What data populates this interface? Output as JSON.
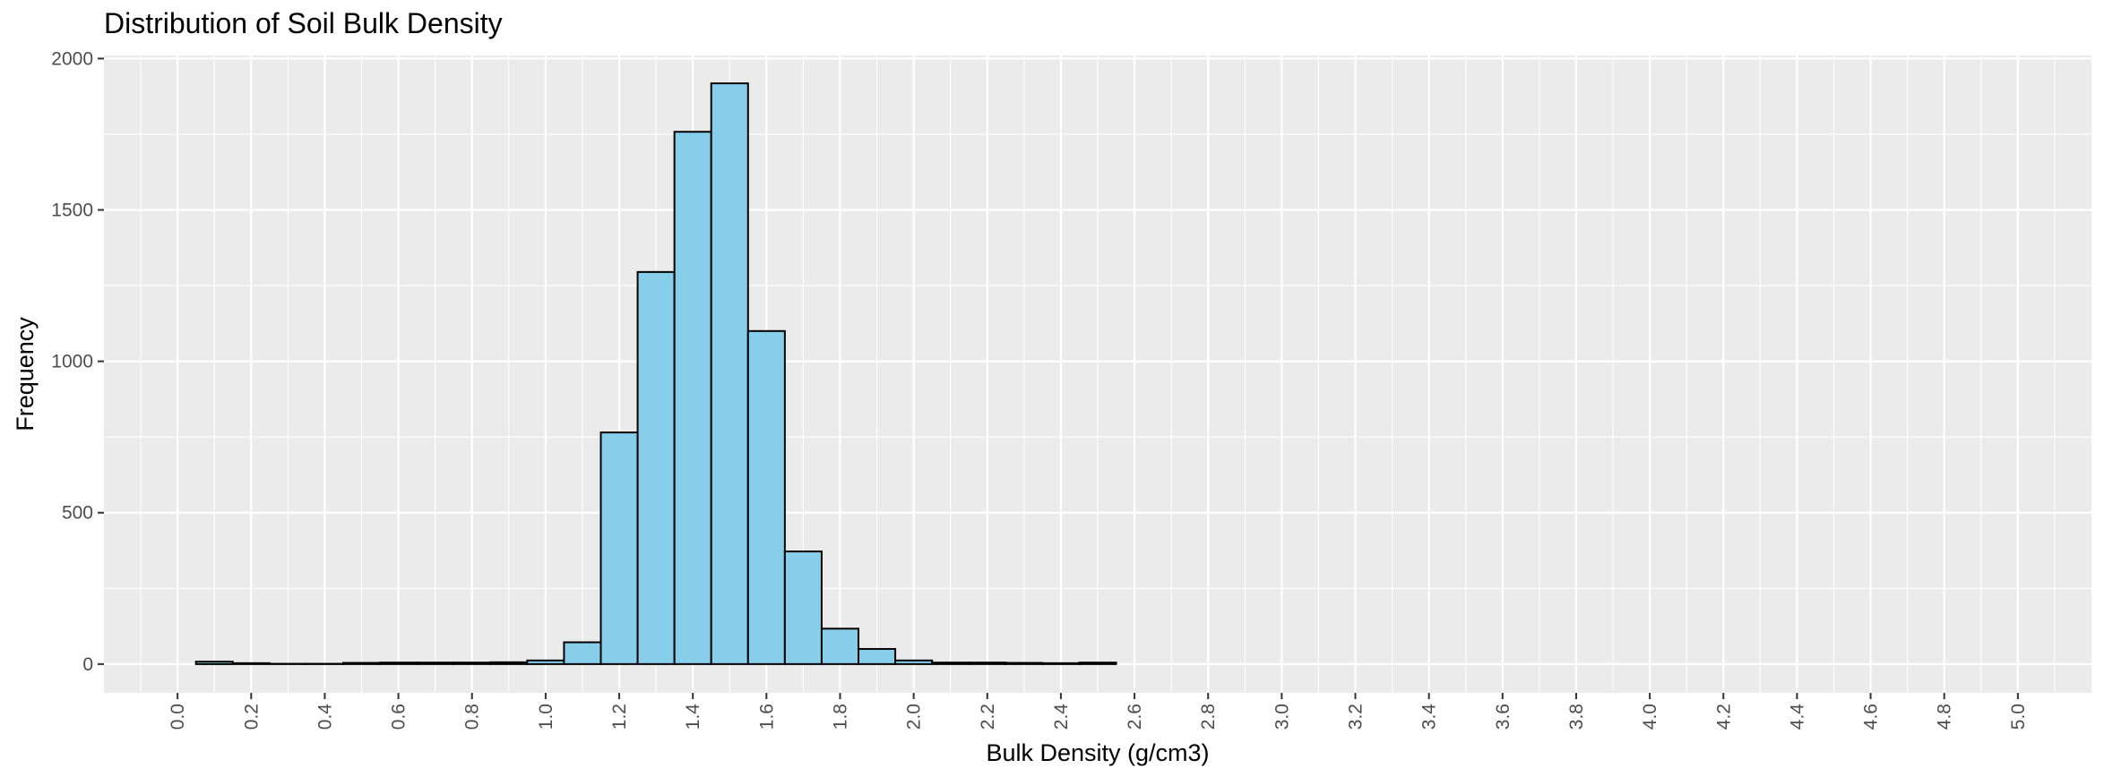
{
  "chart_data": {
    "type": "bar",
    "subtype": "histogram",
    "title": "Distribution of Soil Bulk Density",
    "xlabel": "Bulk Density (g/cm3)",
    "ylabel": "Frequency",
    "xlim": [
      -0.2,
      5.2
    ],
    "ylim": [
      -95,
      2010
    ],
    "bin_width": 0.1,
    "x_ticks": [
      "0.0",
      "0.2",
      "0.4",
      "0.6",
      "0.8",
      "1.0",
      "1.2",
      "1.4",
      "1.6",
      "1.8",
      "2.0",
      "2.2",
      "2.4",
      "2.6",
      "2.8",
      "3.0",
      "3.2",
      "3.4",
      "3.6",
      "3.8",
      "4.0",
      "4.2",
      "4.4",
      "4.6",
      "4.8",
      "5.0"
    ],
    "y_ticks": [
      0,
      500,
      1000,
      1500,
      2000
    ],
    "bins": [
      {
        "x0": 0.05,
        "x1": 0.15,
        "count": 8
      },
      {
        "x0": 0.15,
        "x1": 0.25,
        "count": 3
      },
      {
        "x0": 0.25,
        "x1": 0.35,
        "count": 1
      },
      {
        "x0": 0.35,
        "x1": 0.45,
        "count": 1
      },
      {
        "x0": 0.45,
        "x1": 0.55,
        "count": 4
      },
      {
        "x0": 0.55,
        "x1": 0.65,
        "count": 5
      },
      {
        "x0": 0.65,
        "x1": 0.75,
        "count": 5
      },
      {
        "x0": 0.75,
        "x1": 0.85,
        "count": 5
      },
      {
        "x0": 0.85,
        "x1": 0.95,
        "count": 6
      },
      {
        "x0": 0.95,
        "x1": 1.05,
        "count": 12
      },
      {
        "x0": 1.05,
        "x1": 1.15,
        "count": 72
      },
      {
        "x0": 1.15,
        "x1": 1.25,
        "count": 765
      },
      {
        "x0": 1.25,
        "x1": 1.35,
        "count": 1295
      },
      {
        "x0": 1.35,
        "x1": 1.45,
        "count": 1758
      },
      {
        "x0": 1.45,
        "x1": 1.55,
        "count": 1918
      },
      {
        "x0": 1.55,
        "x1": 1.65,
        "count": 1100
      },
      {
        "x0": 1.65,
        "x1": 1.75,
        "count": 372
      },
      {
        "x0": 1.75,
        "x1": 1.85,
        "count": 117
      },
      {
        "x0": 1.85,
        "x1": 1.95,
        "count": 50
      },
      {
        "x0": 1.95,
        "x1": 2.05,
        "count": 12
      },
      {
        "x0": 2.05,
        "x1": 2.15,
        "count": 5
      },
      {
        "x0": 2.15,
        "x1": 2.25,
        "count": 5
      },
      {
        "x0": 2.25,
        "x1": 2.35,
        "count": 4
      },
      {
        "x0": 2.35,
        "x1": 2.45,
        "count": 3
      },
      {
        "x0": 2.45,
        "x1": 2.55,
        "count": 5
      },
      {
        "x0": 2.55,
        "x1": 4.95,
        "count": 0
      }
    ],
    "colors": {
      "bar_fill": "#87CEEB",
      "bar_stroke": "#000000",
      "panel": "#EBEBEB",
      "grid": "#FFFFFF"
    },
    "grid": true,
    "legend": "none"
  }
}
